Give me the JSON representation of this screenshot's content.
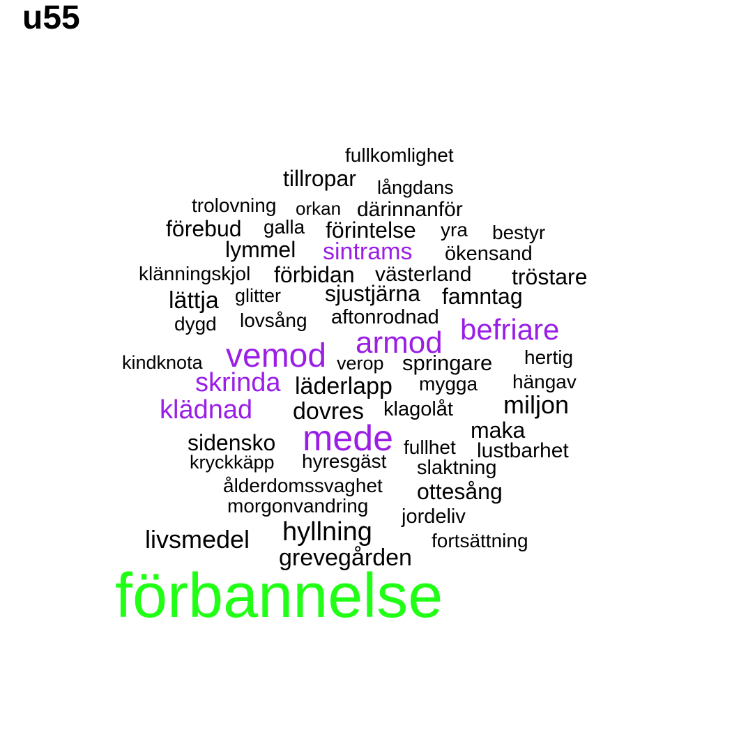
{
  "title": "u55",
  "colors": {
    "common": "#000000",
    "highlight": "#9a1ee6",
    "top": "#22ff16"
  },
  "words": {
    "fullkomlighet": "fullkomlighet",
    "tillropar": "tillropar",
    "langdans": "långdans",
    "trolovning": "trolovning",
    "orkan": "orkan",
    "darinnanfor": "därinnanför",
    "forebud": "förebud",
    "galla": "galla",
    "forintelse": "förintelse",
    "yra": "yra",
    "bestyr": "bestyr",
    "lymmel": "lymmel",
    "sintrams": "sintrams",
    "okensand": "ökensand",
    "klanningskjol": "klänningskjol",
    "forbidan": "förbidan",
    "vasterland": "västerland",
    "trostare": "tröstare",
    "lattja": "lättja",
    "glitter": "glitter",
    "sjustjarna": "sjustjärna",
    "famntag": "famntag",
    "dygd": "dygd",
    "lovsang": "lovsång",
    "aftonrodnad": "aftonrodnad",
    "befriare": "befriare",
    "armod": "armod",
    "kindknota": "kindknota",
    "vemod": "vemod",
    "verop": "verop",
    "springare": "springare",
    "hertig": "hertig",
    "skrinda": "skrinda",
    "laderlapp": "läderlapp",
    "mygga": "mygga",
    "hangav": "hängav",
    "kladnad": "klädnad",
    "dovres": "dovres",
    "klagolat": "klagolåt",
    "miljon": "miljon",
    "maka": "maka",
    "sidensko": "sidensko",
    "mede": "mede",
    "fullhet": "fullhet",
    "lustbarhet": "lustbarhet",
    "kryckkapp": "kryckkäpp",
    "hyresgast": "hyresgäst",
    "slaktning": "slaktning",
    "alderdomssvaghet": "ålderdomssvaghet",
    "ottesang": "ottesång",
    "morgonvandring": "morgonvandring",
    "jordeliv": "jordeliv",
    "livsmedel": "livsmedel",
    "hyllning": "hyllning",
    "fortsattning": "fortsättning",
    "grevegarden": "grevegården",
    "forbannelse": "förbannelse"
  }
}
